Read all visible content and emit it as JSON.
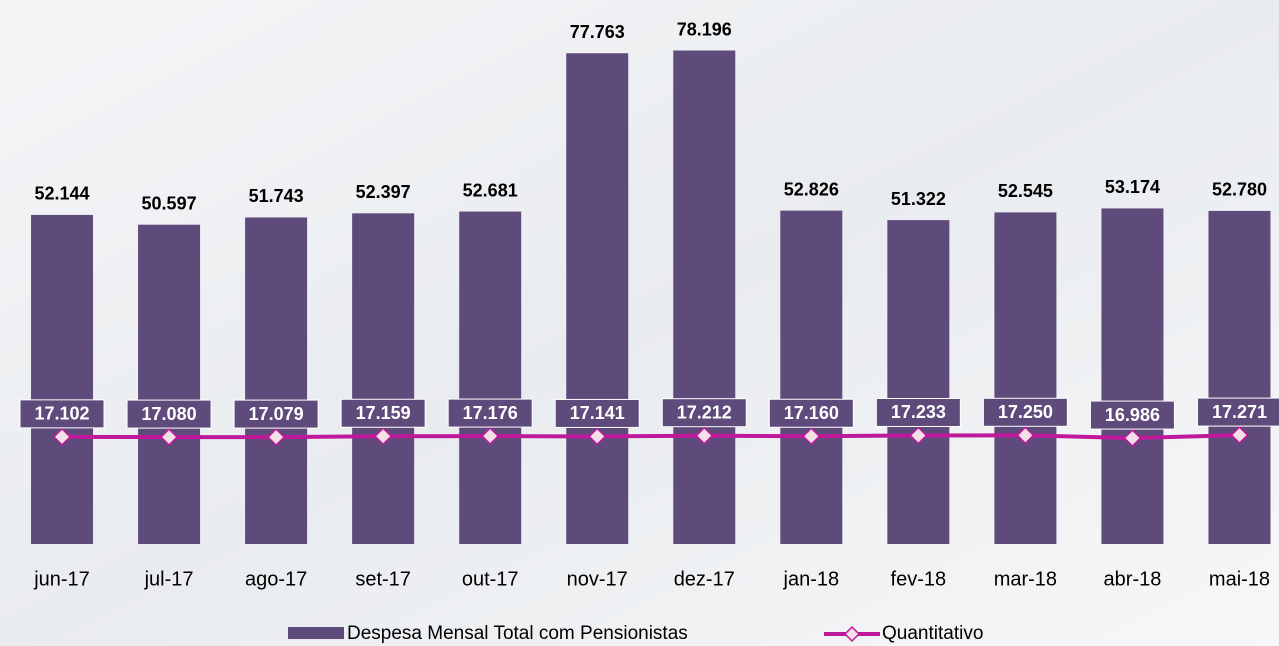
{
  "chart_data": {
    "type": "bar",
    "categories": [
      "jun-17",
      "jul-17",
      "ago-17",
      "set-17",
      "out-17",
      "nov-17",
      "dez-17",
      "jan-18",
      "fev-18",
      "mar-18",
      "abr-18",
      "mai-18"
    ],
    "series": [
      {
        "name": "Despesa Mensal Total com Pensionistas",
        "type": "bar",
        "color": "#5f4b7b",
        "values": [
          52144,
          50597,
          51743,
          52397,
          52681,
          77763,
          78196,
          52826,
          51322,
          52545,
          53174,
          52780
        ],
        "value_labels": [
          "52.144",
          "50.597",
          "51.743",
          "52.397",
          "52.681",
          "77.763",
          "78.196",
          "52.826",
          "51.322",
          "52.545",
          "53.174",
          "52.780"
        ]
      },
      {
        "name": "Quantitativo",
        "type": "line",
        "axis": "y2",
        "color": "#c0189a",
        "values": [
          17102,
          17080,
          17079,
          17159,
          17176,
          17141,
          17212,
          17160,
          17233,
          17250,
          16986,
          17271
        ],
        "value_labels": [
          "17.102",
          "17.080",
          "17.079",
          "17.159",
          "17.176",
          "17.141",
          "17.212",
          "17.160",
          "17.233",
          "17.250",
          "16.986",
          "17.271"
        ]
      }
    ],
    "ylim": [
      0,
      86200
    ],
    "y2lim": [
      6900,
      58700
    ],
    "legend": "bottom"
  }
}
